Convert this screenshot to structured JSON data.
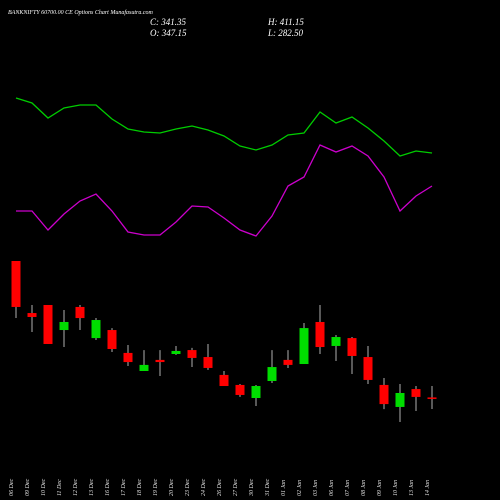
{
  "header": {
    "title": "BANKNIFTY 60700.00 CE Options Chart Munafasutra.com",
    "stats": [
      "C: 341.35",
      "O: 347.15",
      "H: 411.15",
      "L: 282.50"
    ]
  },
  "chart_data": [
    {
      "type": "line",
      "ylim": [
        0,
        165
      ],
      "series": [
        {
          "color": "#00cc00",
          "values": [
            152,
            147,
            132,
            142,
            145,
            145,
            131,
            121,
            118,
            117,
            121,
            124,
            120,
            114,
            104,
            100,
            105,
            115,
            117,
            138,
            127,
            133,
            122,
            109,
            94,
            99,
            97
          ]
        },
        {
          "color": "#cc00cc",
          "values": [
            39,
            39,
            20,
            36,
            49,
            56,
            39,
            18,
            15,
            15,
            28,
            44,
            43,
            32,
            20,
            14,
            34,
            64,
            73,
            105,
            98,
            104,
            94,
            73,
            39,
            54,
            64
          ]
        }
      ]
    },
    {
      "type": "candlestick",
      "ylim": [
        150,
        1200
      ],
      "up_color": "#00dd00",
      "down_color": "#ff0000",
      "wick_color": "#dddddd",
      "categories": [
        "06 Dec",
        "09 Dec",
        "10 Dec",
        "11 Dec",
        "12 Dec",
        "13 Dec",
        "16 Dec",
        "17 Dec",
        "18 Dec",
        "19 Dec",
        "20 Dec",
        "23 Dec",
        "24 Dec",
        "26 Dec",
        "27 Dec",
        "30 Dec",
        "31 Dec",
        "01 Jan",
        "02 Jan",
        "03 Jan",
        "06 Jan",
        "07 Jan",
        "08 Jan",
        "09 Jan",
        "10 Jan",
        "13 Jan",
        "14 Jan"
      ],
      "open": [
        1110,
        819,
        864,
        724,
        853,
        679,
        724,
        596,
        495,
        557,
        590,
        612,
        573,
        473,
        417,
        344,
        439,
        557,
        534,
        769,
        635,
        679,
        573,
        417,
        294,
        394,
        347.15
      ],
      "high": [
        1110,
        864,
        864,
        836,
        864,
        791,
        735,
        640,
        612,
        612,
        635,
        624,
        646,
        495,
        422,
        417,
        612,
        612,
        763,
        864,
        696,
        685,
        635,
        456,
        422,
        411,
        411.15
      ],
      "low": [
        791,
        713,
        646,
        629,
        724,
        668,
        601,
        523,
        495,
        467,
        585,
        517,
        501,
        411,
        350,
        299,
        428,
        512,
        534,
        590,
        551,
        478,
        422,
        282,
        210,
        271,
        282.5
      ],
      "close": [
        853,
        797,
        646,
        769,
        791,
        780,
        618,
        545,
        529,
        545,
        607,
        568,
        512,
        411,
        361,
        411,
        517,
        529,
        735,
        629,
        685,
        579,
        445,
        310,
        372,
        350,
        341.35
      ]
    }
  ]
}
